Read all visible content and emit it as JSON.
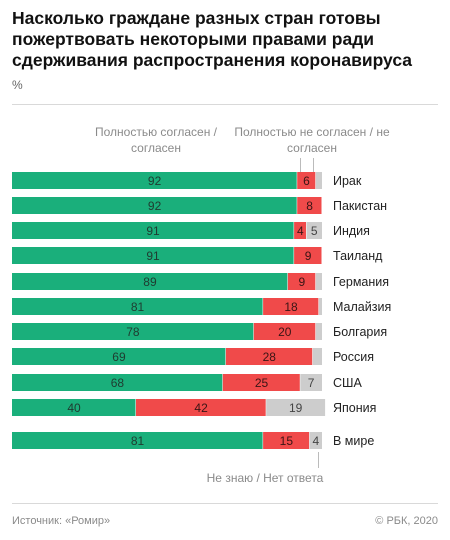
{
  "header": {
    "title": "Насколько граждане разных стран готовы пожертвовать некоторыми правами ради сдерживания распространения коронавируса",
    "unit": "%"
  },
  "legend": {
    "agree": "Полностью согласен / согласен",
    "disagree": "Полностью не согласен / не согласен",
    "dontknow": "Не знаю / Нет ответа"
  },
  "footer": {
    "source": "Источник: «Ромир»",
    "copyright": "© РБК, 2020"
  },
  "colors": {
    "agree": "#1aaf7b",
    "disagree": "#f04a4a",
    "dontknow": "#cdcdcd"
  },
  "chart_data": {
    "type": "bar",
    "orientation": "horizontal",
    "stacked": true,
    "categories": [
      "Ирак",
      "Пакистан",
      "Индия",
      "Таиланд",
      "Германия",
      "Малайзия",
      "Болгария",
      "Россия",
      "США",
      "Япония",
      "В мире"
    ],
    "series": [
      {
        "name": "Полностью согласен / согласен",
        "values": [
          92,
          92,
          91,
          91,
          89,
          81,
          78,
          69,
          68,
          40,
          81
        ]
      },
      {
        "name": "Полностью не согласен / не согласен",
        "values": [
          6,
          8,
          4,
          9,
          9,
          18,
          20,
          28,
          25,
          42,
          15
        ]
      },
      {
        "name": "Не знаю / Нет ответа",
        "values": [
          2,
          0,
          5,
          0,
          2,
          1,
          2,
          3,
          7,
          19,
          4
        ]
      }
    ],
    "value_labels": [
      [
        "92",
        "6",
        ""
      ],
      [
        "92",
        "8",
        ""
      ],
      [
        "91",
        "4",
        "5"
      ],
      [
        "91",
        "9",
        ""
      ],
      [
        "89",
        "9",
        ""
      ],
      [
        "81",
        "18",
        ""
      ],
      [
        "78",
        "20",
        ""
      ],
      [
        "69",
        "28",
        ""
      ],
      [
        "68",
        "25",
        "7"
      ],
      [
        "40",
        "42",
        "19"
      ],
      [
        "81",
        "15",
        "4"
      ]
    ],
    "xlim": [
      0,
      100
    ]
  }
}
